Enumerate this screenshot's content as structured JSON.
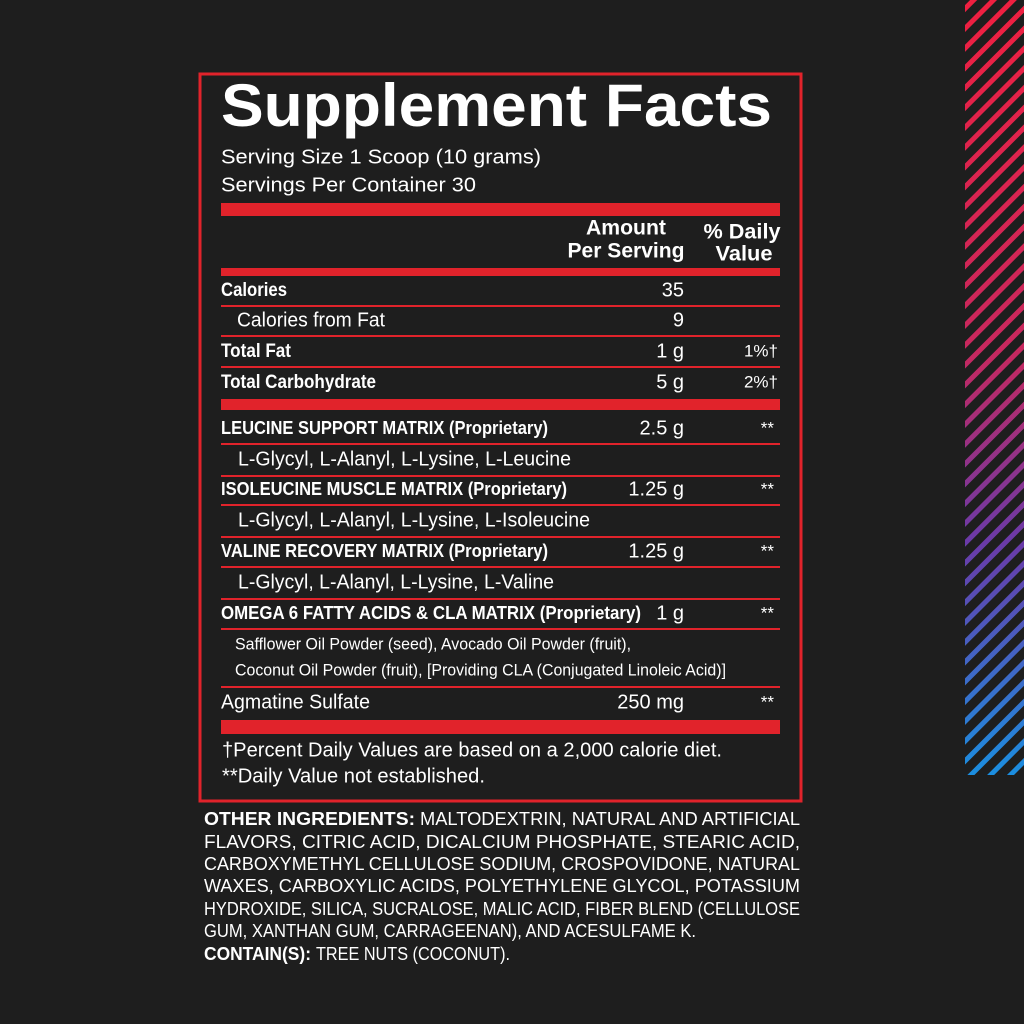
{
  "header": {
    "title": "Supplement Facts",
    "serving_size": "Serving Size 1 Scoop (10 grams)",
    "servings_per_container": "Servings Per Container 30"
  },
  "columns": {
    "amount": [
      "Amount",
      "Per Serving"
    ],
    "daily_value": [
      "% Daily",
      "Value"
    ]
  },
  "nutrients": [
    {
      "name": "Calories",
      "amount": "35"
    },
    {
      "name": "Calories from Fat",
      "amount": "9"
    },
    {
      "name": "Total Fat",
      "amount": "1 g",
      "daily_value": "1%†"
    },
    {
      "name": "Total Carbohydrate",
      "amount": "5 g",
      "daily_value": "2%†"
    }
  ],
  "blends": [
    {
      "name": "LEUCINE SUPPORT MATRIX (Proprietary)",
      "amount": "2.5 g",
      "daily_value": "**",
      "details": [
        "L-Glycyl, L-Alanyl, L-Lysine, L-Leucine"
      ]
    },
    {
      "name": "ISOLEUCINE MUSCLE MATRIX (Proprietary)",
      "amount": "1.25 g",
      "daily_value": "**",
      "details": [
        "L-Glycyl, L-Alanyl, L-Lysine, L-Isoleucine"
      ]
    },
    {
      "name": "VALINE RECOVERY MATRIX (Proprietary)",
      "amount": "1.25 g",
      "daily_value": "**",
      "details": [
        "L-Glycyl, L-Alanyl, L-Lysine, L-Valine"
      ]
    },
    {
      "name": "OMEGA 6 FATTY ACIDS  & CLA MATRIX (Proprietary)",
      "amount": "1 g",
      "daily_value": "**",
      "details": [
        "Safflower Oil Powder (seed), Avocado Oil Powder (fruit),",
        "Coconut Oil Powder (fruit), [Providing CLA (Conjugated Linoleic Acid)]"
      ]
    },
    {
      "name": "Agmatine Sulfate",
      "amount": "250 mg",
      "daily_value": "**"
    }
  ],
  "footnotes": [
    "†Percent Daily Values are based on a 2,000 calorie diet.",
    "**Daily Value not established."
  ],
  "other_ingredients": {
    "label": "OTHER INGREDIENTS:",
    "lines": [
      "MALTODEXTRIN, NATURAL AND ARTIFICIAL",
      "FLAVORS, CITRIC ACID, DICALCIUM PHOSPHATE, STEARIC ACID,",
      "CARBOXYMETHYL CELLULOSE SODIUM, CROSPOVIDONE, NATURAL",
      "WAXES, CARBOXYLIC ACIDS, POLYETHYLENE GLYCOL, POTASSIUM",
      "HYDROXIDE, SILICA, SUCRALOSE, MALIC ACID, FIBER BLEND (CELLULOSE",
      "GUM, XANTHAN GUM, CARRAGEENAN), AND ACESULFAME K."
    ]
  },
  "contains": {
    "label": "CONTAIN(S):",
    "text": "TREE NUTS (COCONUT)."
  }
}
